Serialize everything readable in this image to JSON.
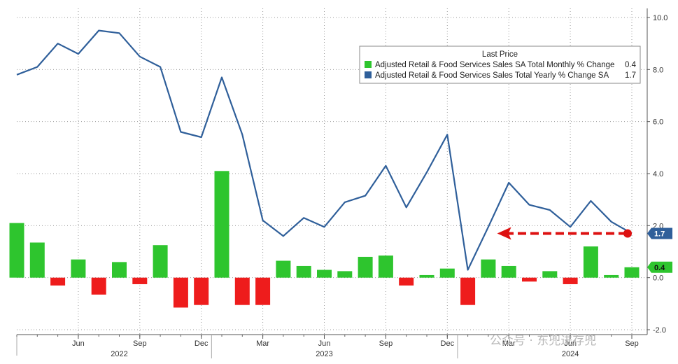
{
  "chart_data": {
    "type": "bar",
    "x": [
      "2022-03",
      "2022-04",
      "2022-05",
      "2022-06",
      "2022-07",
      "2022-08",
      "2022-09",
      "2022-10",
      "2022-11",
      "2022-12",
      "2023-01",
      "2023-02",
      "2023-03",
      "2023-04",
      "2023-05",
      "2023-06",
      "2023-07",
      "2023-08",
      "2023-09",
      "2023-10",
      "2023-11",
      "2023-12",
      "2024-01",
      "2024-02",
      "2024-03",
      "2024-04",
      "2024-05",
      "2024-06",
      "2024-07",
      "2024-08",
      "2024-09"
    ],
    "series": [
      {
        "name": "Adjusted Retail & Food Services Sales SA Total Monthly % Change",
        "type": "bar",
        "values": [
          2.1,
          1.35,
          -0.3,
          0.7,
          -0.65,
          0.6,
          -0.25,
          1.25,
          -1.15,
          -1.05,
          4.1,
          -1.05,
          -1.05,
          0.65,
          0.45,
          0.3,
          0.25,
          0.8,
          0.85,
          -0.3,
          0.1,
          0.35,
          -1.05,
          0.7,
          0.45,
          -0.15,
          0.25,
          -0.25,
          1.2,
          0.1,
          0.4
        ],
        "last_price": "0.4"
      },
      {
        "name": "Adjusted Retail & Food Services Sales Total Yearly % Change SA",
        "type": "line",
        "values": [
          7.8,
          8.1,
          9.0,
          8.6,
          9.5,
          9.4,
          8.5,
          8.1,
          5.6,
          5.4,
          7.7,
          5.5,
          2.2,
          1.6,
          2.3,
          1.95,
          2.9,
          3.15,
          4.3,
          2.7,
          4.05,
          5.5,
          0.3,
          1.95,
          3.65,
          2.8,
          2.6,
          1.95,
          2.95,
          2.15,
          1.7
        ],
        "last_price": "1.7"
      }
    ],
    "legend": {
      "title": "Last Price",
      "placement": "top-right"
    },
    "y_axis": {
      "side": "right",
      "range": [
        -2,
        10
      ],
      "ticks": [
        "-2.0",
        "0.0",
        "2.0",
        "4.0",
        "6.0",
        "8.0",
        "10.0"
      ]
    },
    "x_axis": {
      "month_labels": [
        {
          "x": "2022-06",
          "label": "Jun"
        },
        {
          "x": "2022-09",
          "label": "Sep"
        },
        {
          "x": "2022-12",
          "label": "Dec"
        },
        {
          "x": "2023-03",
          "label": "Mar"
        },
        {
          "x": "2023-06",
          "label": "Jun"
        },
        {
          "x": "2023-09",
          "label": "Sep"
        },
        {
          "x": "2023-12",
          "label": "Dec"
        },
        {
          "x": "2024-03",
          "label": "Mar"
        },
        {
          "x": "2024-06",
          "label": "Jun"
        },
        {
          "x": "2024-09",
          "label": "Sep"
        }
      ],
      "year_labels": [
        {
          "x": "2022-08",
          "label": "2022"
        },
        {
          "x": "2023-06",
          "label": "2023"
        },
        {
          "x": "2024-06",
          "label": "2024"
        }
      ]
    },
    "annotation": {
      "type": "dashed-arrow",
      "from": "2024-09",
      "to": "2024-01",
      "value": 1.7
    },
    "grid": true,
    "colors": {
      "bar_positive": "#2ec52e",
      "bar_negative": "#ee1c1c",
      "line": "#2f5f9a",
      "arrow": "#dd1111",
      "label_box": "#2f5f9a"
    }
  },
  "watermark": "公众号 · 东兜进存兜"
}
